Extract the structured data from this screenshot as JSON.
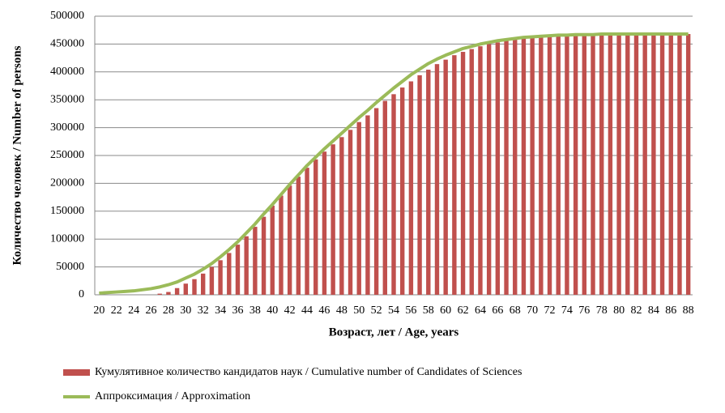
{
  "chart_data": {
    "type": "bar",
    "x_label": "Возраст, лет / Age, years",
    "y_label": "Количество человек / Number of persons",
    "categories": [
      "20",
      null,
      "22",
      null,
      "24",
      null,
      "26",
      null,
      "28",
      null,
      "30",
      null,
      "32",
      null,
      "34",
      null,
      "36",
      null,
      "38",
      null,
      "40",
      null,
      "42",
      null,
      "44",
      null,
      "46",
      null,
      "48",
      null,
      "50",
      null,
      "52",
      null,
      "54",
      null,
      "56",
      null,
      "58",
      null,
      "60",
      null,
      "62",
      null,
      "64",
      null,
      "66",
      null,
      "68",
      null,
      "70",
      null,
      "72",
      null,
      "74",
      null,
      "76",
      null,
      "78",
      null,
      "80",
      null,
      "82",
      null,
      "84",
      null,
      "86",
      null,
      "88"
    ],
    "series": [
      {
        "name": "Кумулятивное количество кандидатов наук / Cumulative number of Candidates of Sciences",
        "type": "bar",
        "color": "#c0504d",
        "values": [
          0,
          0,
          0,
          0,
          0,
          0,
          0,
          2000,
          5000,
          12000,
          20000,
          28000,
          38000,
          50000,
          62000,
          75000,
          90000,
          105000,
          122000,
          140000,
          160000,
          178000,
          196000,
          212000,
          228000,
          243000,
          257000,
          270000,
          283000,
          296000,
          310000,
          322000,
          335000,
          348000,
          360000,
          372000,
          383000,
          394000,
          404000,
          414000,
          422000,
          430000,
          436000,
          441000,
          446000,
          450000,
          453000,
          456000,
          458000,
          460000,
          462000,
          463000,
          464000,
          465000,
          465000,
          466000,
          466000,
          467000,
          467000,
          467000,
          467000,
          468000,
          468000,
          468000,
          468000,
          468000,
          468000,
          468000,
          468000
        ]
      },
      {
        "name": "Аппроксимация / Approximation",
        "type": "line",
        "color": "#9bbb59",
        "values": [
          3000,
          4000,
          5000,
          6000,
          7000,
          9000,
          11000,
          14000,
          18000,
          23000,
          30000,
          37000,
          46000,
          56000,
          68000,
          81000,
          95000,
          111000,
          127000,
          145000,
          162000,
          180000,
          198000,
          215000,
          232000,
          247000,
          262000,
          276000,
          290000,
          304000,
          318000,
          331000,
          345000,
          358000,
          371000,
          383000,
          395000,
          405000,
          415000,
          423000,
          430000,
          436000,
          442000,
          446000,
          450000,
          453000,
          456000,
          458000,
          460000,
          462000,
          463000,
          464000,
          465000,
          466000,
          466000,
          467000,
          467000,
          467000,
          468000,
          468000,
          468000,
          468000,
          468000,
          468000,
          468000,
          468000,
          468000,
          468000,
          468000
        ]
      }
    ],
    "ylim": [
      0,
      500000
    ],
    "yticks": [
      0,
      50000,
      100000,
      150000,
      200000,
      250000,
      300000,
      350000,
      400000,
      450000,
      500000
    ],
    "grid": true
  }
}
